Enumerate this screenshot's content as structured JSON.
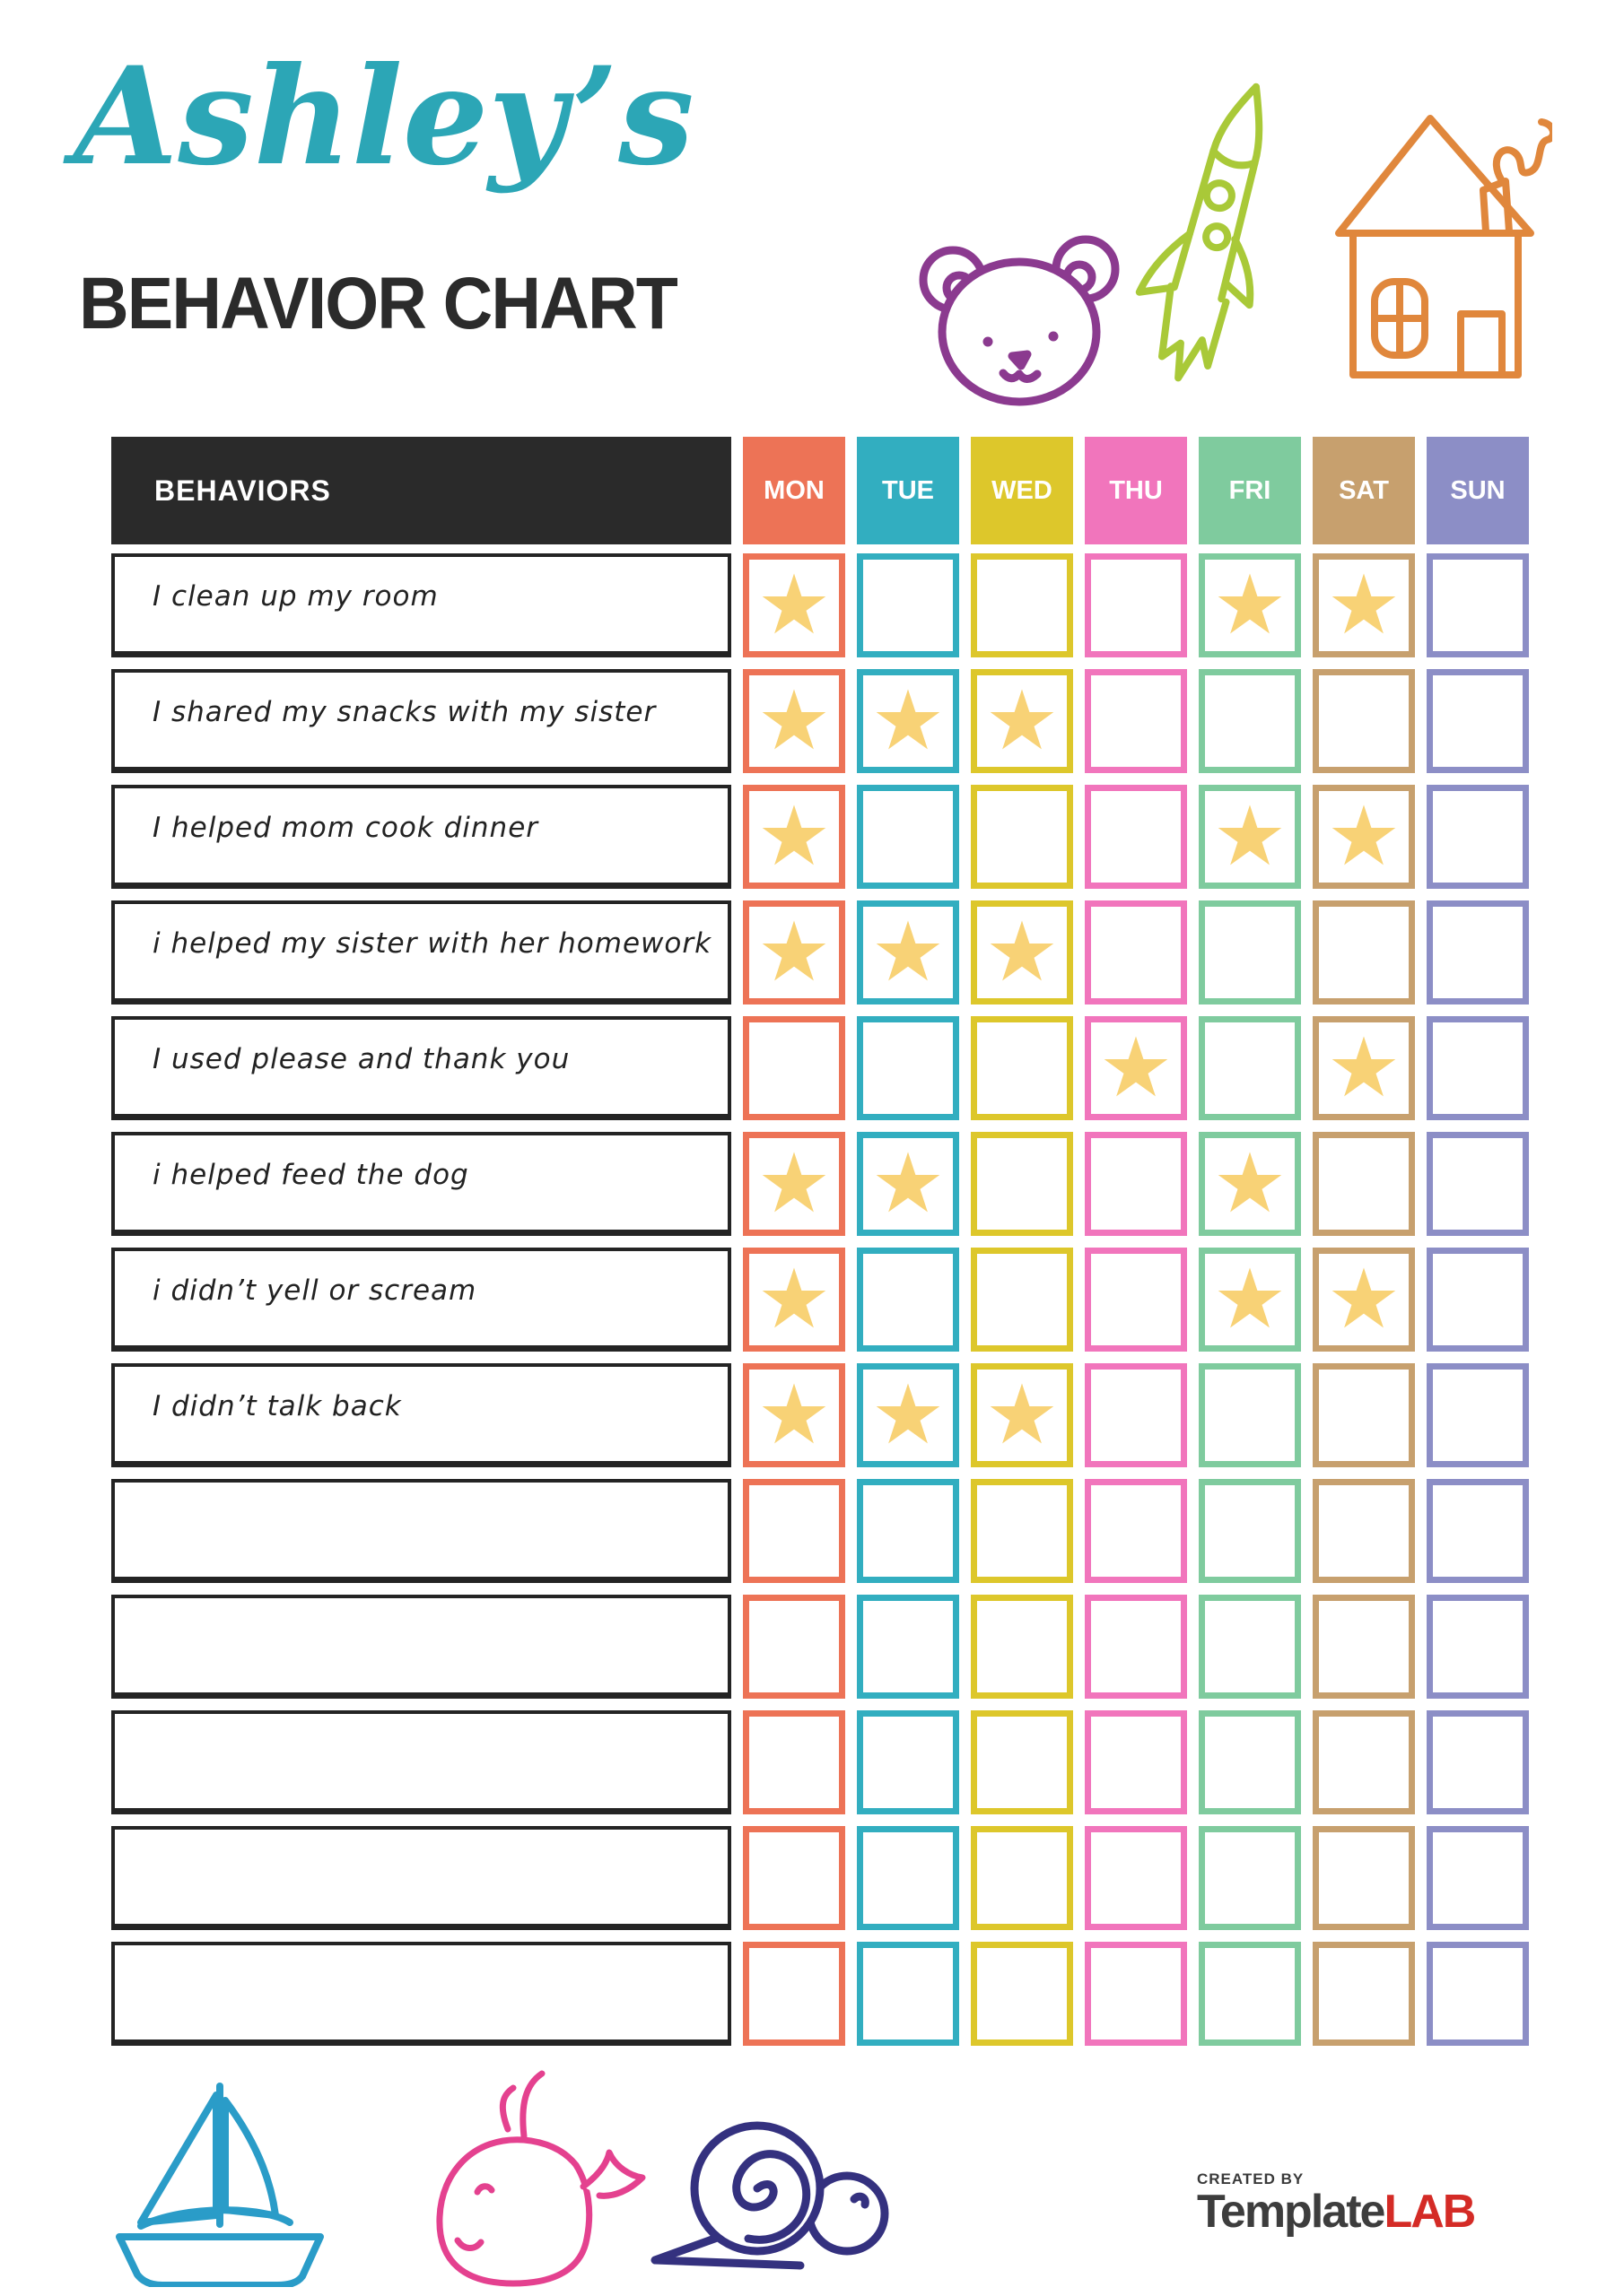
{
  "header": {
    "name_script": "Ashley’s",
    "title": "BEHAVIOR CHART"
  },
  "colors": {
    "script_teal": "#2CA6B6",
    "title_black": "#2B2B2B",
    "header_bar": "#2A2A2A",
    "star_yellow": "#F8D276",
    "bear_purple": "#8B3A8F",
    "rocket_green": "#A9C938",
    "house_orange": "#E0873C",
    "boat_blue": "#2A9CC8",
    "whale_pink": "#E4418F",
    "snail_navy": "#34317F",
    "brand_red": "#D42B26"
  },
  "icons": {
    "star": "★"
  },
  "table": {
    "behaviors_header": "BEHAVIORS",
    "days": [
      {
        "label": "MON",
        "color": "#ED7356"
      },
      {
        "label": "TUE",
        "color": "#32AEC0"
      },
      {
        "label": "WED",
        "color": "#DDC72B"
      },
      {
        "label": "THU",
        "color": "#F175BC"
      },
      {
        "label": "FRI",
        "color": "#7FCB9E"
      },
      {
        "label": "SAT",
        "color": "#C7A06E"
      },
      {
        "label": "SUN",
        "color": "#8C8EC6"
      }
    ],
    "rows": [
      {
        "label": "I clean up my room",
        "stars": [
          "MON",
          "FRI",
          "SAT"
        ]
      },
      {
        "label": "I shared my snacks with my sister",
        "stars": [
          "MON",
          "TUE",
          "WED"
        ]
      },
      {
        "label": "I helped mom cook dinner",
        "stars": [
          "MON",
          "FRI",
          "SAT"
        ]
      },
      {
        "label": "i helped my sister with her homework",
        "stars": [
          "MON",
          "TUE",
          "WED"
        ]
      },
      {
        "label": "I used please and thank you",
        "stars": [
          "THU",
          "SAT"
        ]
      },
      {
        "label": "i helped feed the dog",
        "stars": [
          "MON",
          "TUE",
          "FRI"
        ]
      },
      {
        "label": "i didn’t yell or scream",
        "stars": [
          "MON",
          "FRI",
          "SAT"
        ]
      },
      {
        "label": "I didn’t talk back",
        "stars": [
          "MON",
          "TUE",
          "WED"
        ]
      },
      {
        "label": "",
        "stars": []
      },
      {
        "label": "",
        "stars": []
      },
      {
        "label": "",
        "stars": []
      },
      {
        "label": "",
        "stars": []
      },
      {
        "label": "",
        "stars": []
      }
    ]
  },
  "footer": {
    "created_by": "CREATED BY",
    "brand_name": "Template",
    "brand_suffix": "LAB"
  }
}
